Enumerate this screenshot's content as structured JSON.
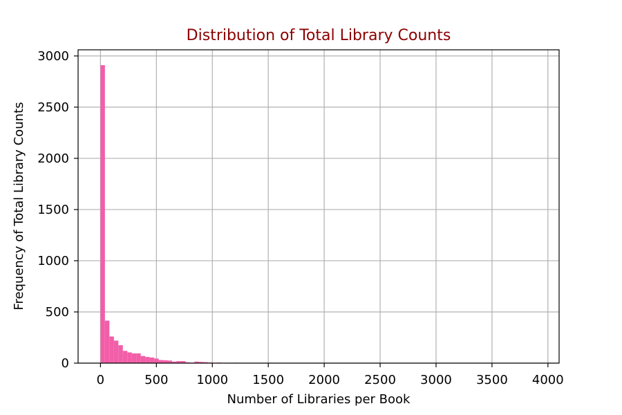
{
  "chart_data": {
    "type": "bar",
    "title": "Distribution of Total Library Counts",
    "xlabel": "Number of Libraries per Book",
    "ylabel": "Frequency of Total Library Counts",
    "xlim": [
      -200,
      4100
    ],
    "ylim": [
      0,
      3060
    ],
    "grid": true,
    "bin_width": 40,
    "bins_start": 0,
    "values": [
      2910,
      415,
      260,
      220,
      175,
      120,
      105,
      95,
      95,
      70,
      60,
      55,
      45,
      30,
      28,
      25,
      15,
      20,
      20,
      8,
      5,
      15,
      12,
      10,
      6,
      3,
      5,
      2,
      2,
      3,
      4,
      2,
      2,
      2,
      1,
      1,
      1
    ],
    "x_ticks": [
      0,
      500,
      1000,
      1500,
      2000,
      2500,
      3000,
      3500,
      4000
    ],
    "y_ticks": [
      0,
      500,
      1000,
      1500,
      2000,
      2500,
      3000
    ],
    "colors": {
      "bar": "#f25ea8",
      "title": "#8b0000",
      "grid": "#b0b0b0",
      "axes": "#000000"
    }
  }
}
